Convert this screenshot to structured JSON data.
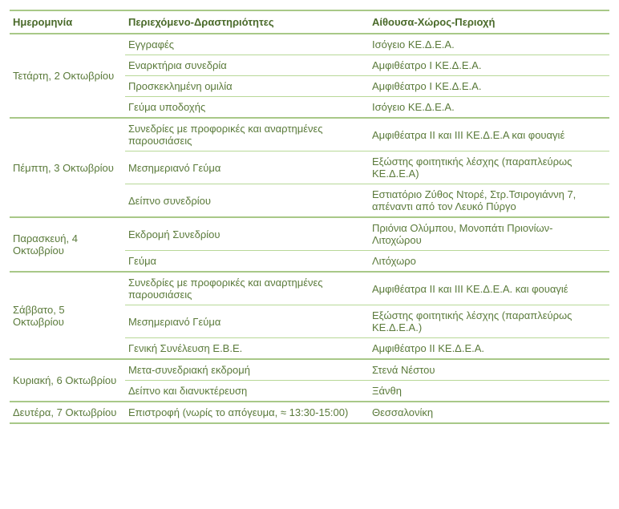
{
  "headers": {
    "date": "Ημερομηνία",
    "activity": "Περιεχόμενο-Δραστηριότητες",
    "location": "Αίθουσα-Χώρος-Περιοχή"
  },
  "days": [
    {
      "date": "Τετάρτη, 2 Οκτωβρίου",
      "rows": [
        {
          "activity": "Εγγραφές",
          "location": "Ισόγειο ΚΕ.Δ.Ε.Α."
        },
        {
          "activity": "Εναρκτήρια συνεδρία",
          "location": "Αμφιθέατρο I ΚΕ.Δ.Ε.Α."
        },
        {
          "activity": "Προσκεκλημένη ομιλία",
          "location": "Αμφιθέατρο I ΚΕ.Δ.Ε.Α."
        },
        {
          "activity": "Γεύμα υποδοχής",
          "location": "Ισόγειο ΚΕ.Δ.Ε.Α."
        }
      ]
    },
    {
      "date": "Πέμπτη, 3 Οκτωβρίου",
      "rows": [
        {
          "activity": "Συνεδρίες με προφορικές και αναρτημένες παρουσιάσεις",
          "location": "Αμφιθέατρα II και III ΚΕ.Δ.Ε.Α και φουαγιέ"
        },
        {
          "activity": "Μεσημεριανό Γεύμα",
          "location": "Εξώστης φοιτητικής λέσχης (παραπλεύρως ΚΕ.Δ.Ε.Α)"
        },
        {
          "activity": "Δείπνο συνεδρίου",
          "location": "Εστιατόριο Ζύθος Ντορέ, Στρ.Τσιρογιάννη 7, απέναντι από τον Λευκό Πύργο"
        }
      ]
    },
    {
      "date": "Παρασκευή, 4 Οκτωβρίου",
      "rows": [
        {
          "activity": "Εκδρομή Συνεδρίου",
          "location": "Πριόνια Ολύμπου, Μονοπάτι Πριονίων-Λιτοχώρου"
        },
        {
          "activity": "Γεύμα",
          "location": "Λιτόχωρο"
        }
      ]
    },
    {
      "date": "Σάββατο, 5 Οκτωβρίου",
      "rows": [
        {
          "activity": "Συνεδρίες με προφορικές και αναρτημένες παρουσιάσεις",
          "location": "Αμφιθέατρα II και III ΚΕ.Δ.Ε.Α. και φουαγιέ"
        },
        {
          "activity": "Μεσημεριανό Γεύμα",
          "location": "Εξώστης φοιτητικής λέσχης (παραπλεύρως ΚΕ.Δ.Ε.Α.)"
        },
        {
          "activity": "Γενική Συνέλευση Ε.Β.Ε.",
          "location": "Αμφιθέατρο II ΚΕ.Δ.Ε.Α."
        }
      ]
    },
    {
      "date": "Κυριακή, 6 Οκτωβρίου",
      "rows": [
        {
          "activity": "Μετα-συνεδριακή εκδρομή",
          "location": "Στενά Νέστου"
        },
        {
          "activity": "Δείπνο και διανυκτέρευση",
          "location": "Ξάνθη"
        }
      ]
    },
    {
      "date": "Δευτέρα, 7 Οκτωβρίου",
      "rows": [
        {
          "activity": "Επιστροφή (νωρίς το απόγευμα, ≈ 13:30-15:00)",
          "location": "Θεσσαλονίκη"
        }
      ]
    }
  ]
}
